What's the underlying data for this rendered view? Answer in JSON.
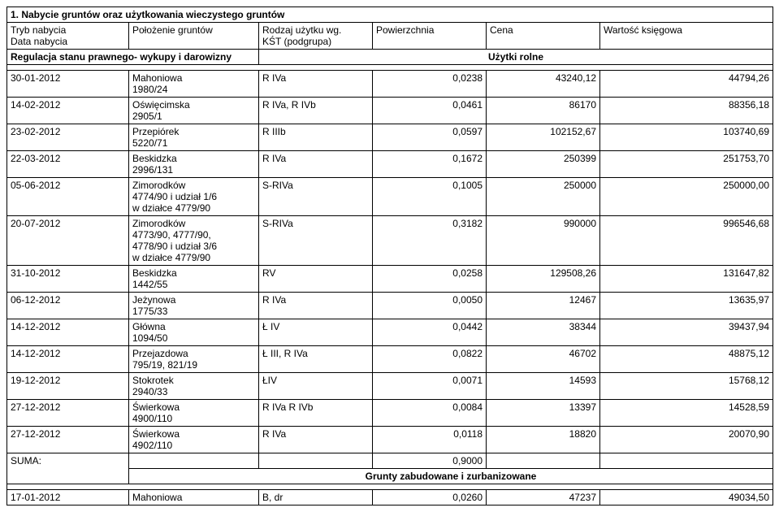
{
  "title": "1.  Nabycie gruntów oraz użytkowania wieczystego gruntów",
  "headers": {
    "col1a": "Tryb nabycia",
    "col1b": "Data nabycia",
    "col2": "Położenie gruntów",
    "col3a": "Rodzaj użytku wg.",
    "col3b": "KŚT (podgrupa)",
    "col4": "Powierzchnia",
    "col5": "Cena",
    "col6": "Wartość księgowa"
  },
  "regulation_label": "Regulacja stanu prawnego- wykupy i darowizny",
  "group1": "Użytki rolne",
  "group2": "Grunty zabudowane i zurbanizowane",
  "rows": [
    {
      "date": "30-01-2012",
      "loc": "Mahoniowa\n1980/24",
      "type": "R IVa",
      "area": "0,0238",
      "price": "43240,12",
      "value": "44794,26"
    },
    {
      "date": "14-02-2012",
      "loc": "Oświęcimska\n2905/1",
      "type": "R IVa, R IVb",
      "area": "0,0461",
      "price": "86170",
      "value": "88356,18"
    },
    {
      "date": "23-02-2012",
      "loc": "Przepiórek\n5220/71",
      "type": "R IIIb",
      "area": "0,0597",
      "price": "102152,67",
      "value": "103740,69"
    },
    {
      "date": "22-03-2012",
      "loc": "Beskidzka\n2996/131",
      "type": "R IVa",
      "area": "0,1672",
      "price": "250399",
      "value": "251753,70"
    },
    {
      "date": "05-06-2012",
      "loc": "Zimorodków\n4774/90 i udział 1/6\nw działce 4779/90",
      "type": "S-RIVa",
      "area": "0,1005",
      "price": "250000",
      "value": "250000,00"
    },
    {
      "date": "20-07-2012",
      "loc": "Zimorodków\n4773/90, 4777/90,\n4778/90 i udział 3/6\nw działce 4779/90",
      "type": "S-RIVa",
      "area": "0,3182",
      "price": "990000",
      "value": "996546,68"
    },
    {
      "date": "31-10-2012",
      "loc": "Beskidzka\n1442/55",
      "type": "RV",
      "area": "0,0258",
      "price": "129508,26",
      "value": "131647,82"
    },
    {
      "date": "06-12-2012",
      "loc": "Jeżynowa\n1775/33",
      "type": "R IVa",
      "area": "0,0050",
      "price": "12467",
      "value": "13635,97"
    },
    {
      "date": "14-12-2012",
      "loc": "Główna\n1094/50",
      "type": "Ł IV",
      "area": "0,0442",
      "price": "38344",
      "value": "39437,94"
    },
    {
      "date": "14-12-2012",
      "loc": "Przejazdowa\n795/19, 821/19",
      "type": "Ł III, R IVa",
      "area": "0,0822",
      "price": "46702",
      "value": "48875,12"
    },
    {
      "date": "19-12-2012",
      "loc": "Stokrotek\n2940/33",
      "type": "ŁIV",
      "area": "0,0071",
      "price": "14593",
      "value": "15768,12"
    },
    {
      "date": "27-12-2012",
      "loc": "Świerkowa\n4900/110",
      "type": "R IVa R IVb",
      "area": "0,0084",
      "price": "13397",
      "value": "14528,59"
    },
    {
      "date": "27-12-2012",
      "loc": "Świerkowa\n4902/110",
      "type": "R IVa",
      "area": "0,0118",
      "price": "18820",
      "value": "20070,90"
    }
  ],
  "suma_label": "SUMA:",
  "suma_area": "0,9000",
  "rows2": [
    {
      "date": "17-01-2012",
      "loc": "Mahoniowa",
      "type": "B, dr",
      "area": "0,0260",
      "price": "47237",
      "value": "49034,50"
    }
  ],
  "colwidths": {
    "c1": "150px",
    "c2": "160px",
    "c3": "140px",
    "c4": "140px",
    "c5": "140px",
    "c6": "170px"
  }
}
